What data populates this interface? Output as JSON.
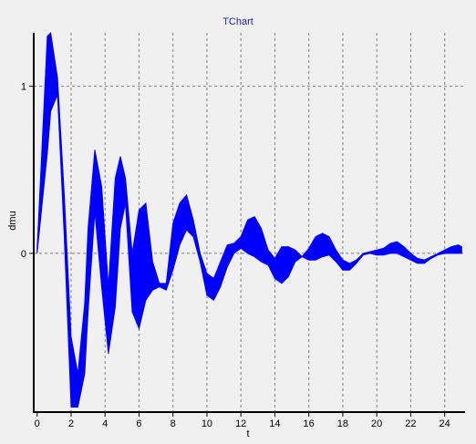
{
  "chart_data": {
    "type": "area",
    "title": "TChart",
    "xlabel": "t",
    "ylabel": "dmu",
    "xlim": [
      -0.2,
      25.2
    ],
    "ylim": [
      -0.95,
      1.32
    ],
    "grid": true,
    "legend": "none",
    "x_ticks": [
      0,
      2,
      4,
      6,
      8,
      10,
      12,
      14,
      16,
      18,
      20,
      22,
      24
    ],
    "x_tick_labels": [
      "0",
      "2",
      "4",
      "6",
      "8",
      "10",
      "12",
      "14",
      "16",
      "18",
      "20",
      "22",
      "24"
    ],
    "y_ticks": [
      0,
      1
    ],
    "y_tick_labels": [
      "0",
      "1"
    ],
    "series": [
      {
        "color": "#0000ff",
        "x": [
          0,
          0.6,
          0.8,
          1.2,
          1.6,
          2.0,
          2.4,
          2.8,
          3.0,
          3.4,
          3.8,
          4.2,
          4.6,
          4.9,
          5.2,
          5.6,
          6.0,
          6.4,
          6.8,
          7.2,
          7.6,
          8.0,
          8.4,
          8.8,
          9.2,
          9.6,
          10.0,
          10.4,
          10.8,
          11.2,
          11.6,
          12.0,
          12.4,
          12.8,
          13.2,
          13.6,
          14.0,
          14.4,
          14.8,
          15.2,
          15.6,
          16.0,
          16.4,
          16.8,
          17.2,
          17.6,
          18.0,
          18.4,
          18.8,
          19.2,
          19.6,
          20.0,
          20.4,
          20.8,
          21.2,
          21.6,
          22.0,
          22.4,
          22.8,
          23.2,
          23.6,
          24.0,
          24.4,
          24.8,
          25.0
        ],
        "upper": [
          0.02,
          1.3,
          1.32,
          1.05,
          0.35,
          -0.5,
          -0.72,
          -0.3,
          0.15,
          0.62,
          0.4,
          -0.2,
          0.45,
          0.58,
          0.45,
          0.0,
          0.26,
          0.3,
          -0.05,
          -0.18,
          -0.18,
          0.18,
          0.3,
          0.35,
          0.2,
          0.0,
          -0.12,
          -0.15,
          -0.05,
          0.05,
          0.06,
          0.1,
          0.2,
          0.22,
          0.15,
          0.02,
          -0.03,
          0.04,
          0.04,
          0.02,
          -0.02,
          0.03,
          0.1,
          0.12,
          0.1,
          0.02,
          -0.04,
          -0.06,
          -0.04,
          0.0,
          0.01,
          0.02,
          0.03,
          0.06,
          0.07,
          0.04,
          0.0,
          -0.03,
          -0.04,
          -0.02,
          0.0,
          0.02,
          0.04,
          0.05,
          0.04
        ],
        "lower": [
          0.0,
          0.6,
          0.85,
          0.95,
          0.1,
          -0.92,
          -0.92,
          -0.72,
          -0.35,
          0.25,
          -0.2,
          -0.6,
          -0.32,
          0.15,
          0.3,
          -0.35,
          -0.45,
          -0.28,
          -0.22,
          -0.2,
          -0.22,
          -0.1,
          0.05,
          0.14,
          0.1,
          -0.05,
          -0.25,
          -0.28,
          -0.2,
          -0.08,
          0.0,
          0.03,
          0.0,
          -0.02,
          -0.05,
          -0.07,
          -0.15,
          -0.18,
          -0.14,
          -0.05,
          -0.02,
          -0.04,
          -0.04,
          -0.02,
          -0.01,
          -0.05,
          -0.1,
          -0.1,
          -0.06,
          -0.01,
          0.0,
          -0.01,
          -0.01,
          0.0,
          0.0,
          -0.02,
          -0.04,
          -0.06,
          -0.06,
          -0.03,
          -0.01,
          0.0,
          0.0,
          0.0,
          0.0
        ]
      }
    ]
  }
}
